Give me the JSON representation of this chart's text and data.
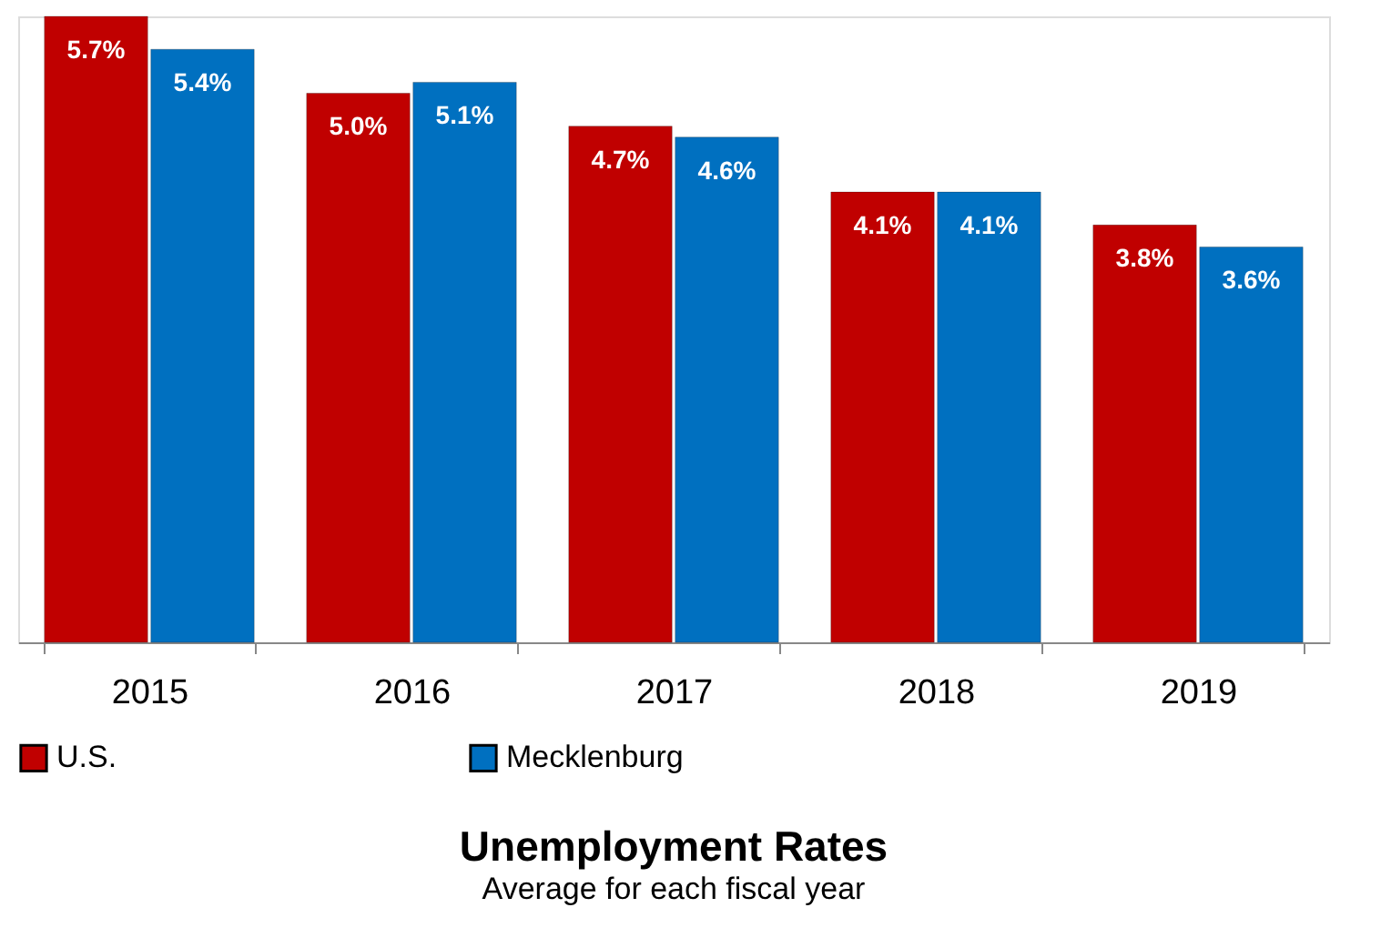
{
  "chart_data": {
    "type": "bar",
    "title": "Unemployment Rates",
    "subtitle": "Average for each fiscal year",
    "categories": [
      "2015",
      "2016",
      "2017",
      "2018",
      "2019"
    ],
    "series": [
      {
        "name": "U.S.",
        "color": "#c00000",
        "values": [
          5.7,
          5.0,
          4.7,
          4.1,
          3.8
        ],
        "value_labels": [
          "5.7%",
          "5.0%",
          "4.7%",
          "4.1%",
          "3.8%"
        ]
      },
      {
        "name": "Mecklenburg",
        "color": "#0070c0",
        "values": [
          5.4,
          5.1,
          4.6,
          4.1,
          3.6
        ],
        "value_labels": [
          "5.4%",
          "5.1%",
          "4.6%",
          "4.1%",
          "3.6%"
        ]
      }
    ],
    "grid": false,
    "legend": "bottom",
    "tick_labels": "x"
  }
}
